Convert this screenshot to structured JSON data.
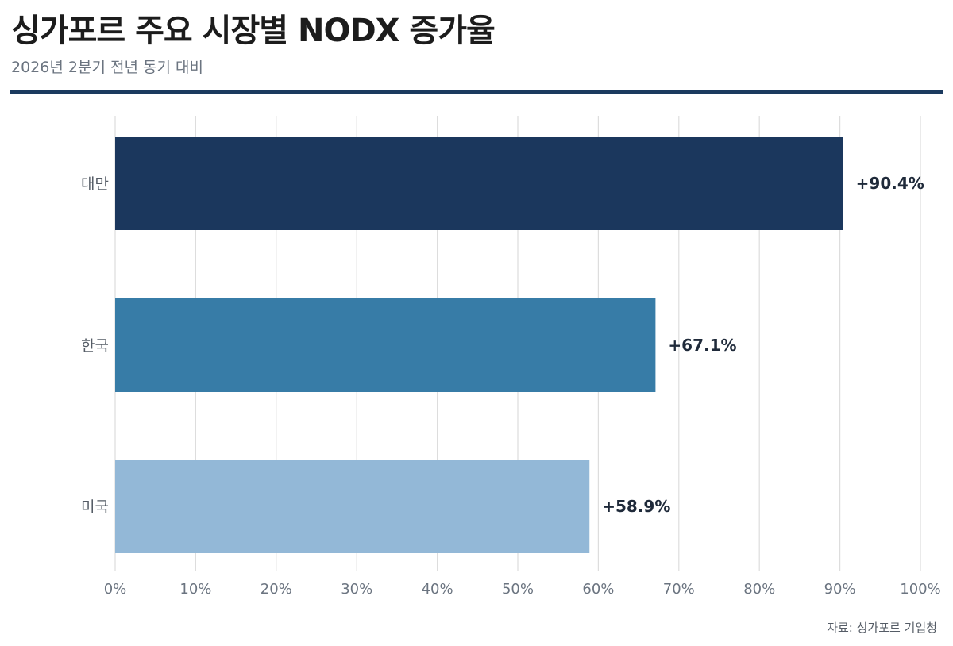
{
  "header": {
    "title": "싱가포르 주요 시장별 NODX 증가율",
    "subtitle": "2026년 2분기 전년 동기 대비"
  },
  "footer": {
    "source": "자료: 싱가포르 기업청"
  },
  "colors": {
    "rule": "#1b3a5f",
    "grid": "#dddddd",
    "tick_text": "#6b7480",
    "category_text": "#555c66",
    "value_text": "#1f2a3a"
  },
  "chart_data": {
    "type": "bar",
    "orientation": "horizontal",
    "categories": [
      "대만",
      "한국",
      "미국"
    ],
    "values": [
      90.4,
      67.1,
      58.9
    ],
    "value_labels": [
      "+90.4%",
      "+67.1%",
      "+58.9%"
    ],
    "bar_colors": [
      "#1b375d",
      "#377ca7",
      "#93b8d7"
    ],
    "xlim": [
      0,
      100
    ],
    "xticks": [
      0,
      10,
      20,
      30,
      40,
      50,
      60,
      70,
      80,
      90,
      100
    ],
    "xtick_labels": [
      "0%",
      "10%",
      "20%",
      "30%",
      "40%",
      "50%",
      "60%",
      "70%",
      "80%",
      "90%",
      "100%"
    ],
    "grid": true,
    "legend": false
  }
}
